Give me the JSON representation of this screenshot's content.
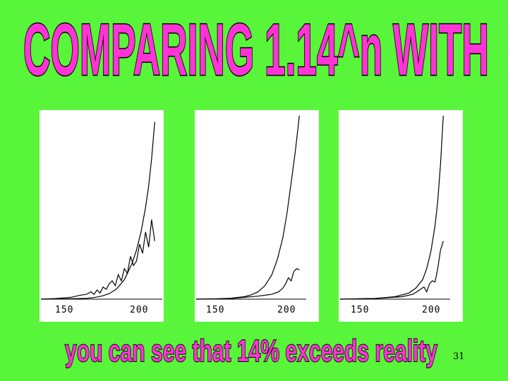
{
  "slide": {
    "title": "COMPARING 1.14^n WITH",
    "subtitle": "you can see that 14% exceeds reality",
    "page_number": "31",
    "colors": {
      "background": "#59f53a",
      "title_fill": "#ff33d6",
      "title_outline": "#000000",
      "panel_bg": "#ffffff",
      "line": "#000000"
    }
  },
  "chart_data": [
    {
      "type": "line",
      "x_ticks": [
        "150",
        "200"
      ],
      "xlim": [
        125,
        205
      ],
      "series": [
        {
          "values_x": [
            125,
            135,
            145,
            155,
            160,
            165,
            170,
            175,
            180,
            185,
            188,
            191,
            194,
            196,
            198,
            200
          ],
          "values_y": [
            0,
            0.002,
            0.006,
            0.014,
            0.026,
            0.05,
            0.09,
            0.17,
            0.32,
            0.58,
            0.8,
            1.1,
            1.5,
            1.85,
            2.3,
            2.9
          ]
        },
        {
          "values_x": [
            125,
            135,
            145,
            150,
            155,
            158,
            160,
            162,
            164,
            166,
            168,
            170,
            172,
            174,
            176,
            178,
            180,
            182,
            184,
            186,
            188,
            190,
            192,
            194,
            196,
            198,
            200
          ],
          "values_y": [
            0,
            0.01,
            0.03,
            0.06,
            0.08,
            0.12,
            0.08,
            0.15,
            0.1,
            0.2,
            0.16,
            0.25,
            0.3,
            0.22,
            0.4,
            0.3,
            0.5,
            0.42,
            0.7,
            0.55,
            0.62,
            0.9,
            0.75,
            1.1,
            0.85,
            1.3,
            0.95
          ]
        }
      ]
    },
    {
      "type": "line",
      "x_ticks": [
        "150",
        "200"
      ],
      "xlim": [
        125,
        205
      ],
      "series": [
        {
          "values_x": [
            125,
            140,
            150,
            160,
            165,
            170,
            175,
            180,
            184,
            188,
            191,
            194,
            197,
            200
          ],
          "values_y": [
            0,
            0.005,
            0.015,
            0.04,
            0.07,
            0.12,
            0.22,
            0.4,
            0.65,
            1.0,
            1.4,
            1.9,
            2.4,
            3.0
          ]
        },
        {
          "values_x": [
            125,
            150,
            170,
            180,
            185,
            188,
            190,
            192,
            194,
            196,
            198,
            200
          ],
          "values_y": [
            0,
            0.01,
            0.05,
            0.08,
            0.12,
            0.18,
            0.25,
            0.35,
            0.3,
            0.45,
            0.5,
            0.48
          ]
        }
      ]
    },
    {
      "type": "line",
      "x_ticks": [
        "150",
        "200"
      ],
      "xlim": [
        125,
        205
      ],
      "series": [
        {
          "values_x": [
            125,
            150,
            165,
            175,
            180,
            185,
            188,
            191,
            194,
            196,
            198,
            200
          ],
          "values_y": [
            0,
            0.01,
            0.04,
            0.1,
            0.18,
            0.32,
            0.5,
            0.78,
            1.2,
            1.6,
            2.2,
            3.0
          ]
        },
        {
          "values_x": [
            125,
            150,
            170,
            178,
            182,
            186,
            188,
            190,
            192,
            194,
            196,
            198,
            200
          ],
          "values_y": [
            0,
            0.01,
            0.04,
            0.08,
            0.14,
            0.2,
            0.12,
            0.25,
            0.3,
            0.28,
            0.5,
            0.8,
            0.95
          ]
        }
      ]
    }
  ]
}
